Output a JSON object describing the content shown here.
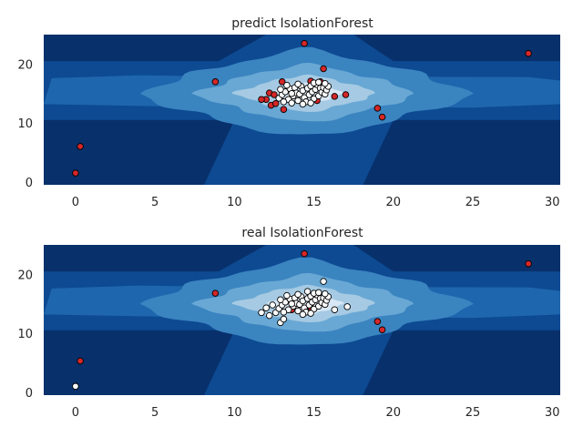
{
  "chart_data": [
    {
      "type": "scatter",
      "title": "predict IsolationForest",
      "xlabel": "",
      "ylabel": "",
      "xlim": [
        -2,
        30.5
      ],
      "ylim": [
        -0.5,
        25
      ],
      "xticks": [
        0,
        5,
        10,
        15,
        20,
        25,
        30
      ],
      "yticks": [
        0,
        10,
        20
      ],
      "grid": false,
      "background": "decision-function contour (Blues), dense region centered near (14.5, 15)",
      "colors": {
        "inlier": "#ffffff",
        "outlier": "#d62728"
      },
      "series": [
        {
          "color": "#d62728",
          "points": [
            [
              0.0,
              1.5
            ],
            [
              0.3,
              6.0
            ],
            [
              8.8,
              17.0
            ],
            [
              14.4,
              23.5
            ],
            [
              15.6,
              19.2
            ],
            [
              28.5,
              21.8
            ],
            [
              19.0,
              12.5
            ],
            [
              19.3,
              11.0
            ],
            [
              17.0,
              14.8
            ],
            [
              16.3,
              14.5
            ],
            [
              15.2,
              13.8
            ],
            [
              14.8,
              17.1
            ],
            [
              15.4,
              17.0
            ],
            [
              13.0,
              17.0
            ],
            [
              13.1,
              12.3
            ],
            [
              12.3,
              13.0
            ],
            [
              12.0,
              14.0
            ],
            [
              11.7,
              14.0
            ],
            [
              12.6,
              13.3
            ],
            [
              12.2,
              15.1
            ],
            [
              12.5,
              14.8
            ]
          ]
        },
        {
          "color": "#ffffff",
          "points": [
            [
              12.8,
              14.2
            ],
            [
              13.0,
              14.8
            ],
            [
              13.2,
              15.3
            ],
            [
              13.4,
              14.0
            ],
            [
              13.5,
              15.8
            ],
            [
              13.6,
              13.4
            ],
            [
              13.7,
              14.6
            ],
            [
              13.8,
              16.0
            ],
            [
              13.9,
              15.1
            ],
            [
              14.0,
              13.8
            ],
            [
              14.1,
              14.9
            ],
            [
              14.2,
              16.2
            ],
            [
              14.3,
              15.5
            ],
            [
              14.4,
              14.3
            ],
            [
              14.5,
              13.6
            ],
            [
              14.6,
              15.9
            ],
            [
              14.7,
              14.8
            ],
            [
              14.8,
              16.3
            ],
            [
              14.9,
              15.3
            ],
            [
              15.0,
              14.1
            ],
            [
              15.1,
              15.7
            ],
            [
              15.2,
              16.5
            ],
            [
              15.3,
              14.6
            ],
            [
              15.4,
              15.9
            ],
            [
              15.5,
              15.2
            ],
            [
              15.6,
              16.0
            ],
            [
              15.7,
              14.9
            ],
            [
              15.8,
              15.6
            ],
            [
              15.9,
              16.2
            ],
            [
              13.3,
              16.4
            ],
            [
              13.6,
              15.0
            ],
            [
              14.0,
              16.6
            ],
            [
              14.3,
              13.2
            ],
            [
              14.8,
              13.4
            ],
            [
              15.0,
              16.8
            ],
            [
              15.3,
              16.9
            ],
            [
              15.7,
              16.7
            ],
            [
              12.9,
              15.7
            ],
            [
              13.1,
              13.6
            ]
          ]
        }
      ]
    },
    {
      "type": "scatter",
      "title": "real IsolationForest",
      "xlabel": "",
      "ylabel": "",
      "xlim": [
        -2,
        30.5
      ],
      "ylim": [
        -0.5,
        25
      ],
      "xticks": [
        0,
        5,
        10,
        15,
        20,
        25,
        30
      ],
      "yticks": [
        0,
        10,
        20
      ],
      "grid": false,
      "background": "decision-function contour (Blues), dense region centered near (14.5, 15)",
      "colors": {
        "inlier": "#ffffff",
        "outlier": "#d62728"
      },
      "series": [
        {
          "color": "#d62728",
          "points": [
            [
              0.3,
              5.3
            ],
            [
              8.8,
              16.8
            ],
            [
              14.4,
              23.5
            ],
            [
              28.5,
              21.8
            ],
            [
              19.0,
              12.0
            ],
            [
              19.3,
              10.6
            ],
            [
              13.6,
              14.0
            ],
            [
              14.8,
              14.4
            ]
          ]
        },
        {
          "color": "#ffffff",
          "points": [
            [
              0.0,
              1.0
            ],
            [
              15.6,
              18.8
            ],
            [
              17.1,
              14.5
            ],
            [
              16.3,
              14.0
            ],
            [
              11.7,
              13.5
            ],
            [
              12.0,
              14.3
            ],
            [
              12.2,
              13.0
            ],
            [
              12.4,
              14.8
            ],
            [
              12.6,
              13.5
            ],
            [
              12.8,
              14.2
            ],
            [
              12.9,
              11.8
            ],
            [
              13.0,
              14.8
            ],
            [
              13.1,
              12.4
            ],
            [
              13.2,
              15.3
            ],
            [
              13.4,
              14.0
            ],
            [
              13.5,
              15.8
            ],
            [
              13.7,
              14.6
            ],
            [
              13.8,
              16.0
            ],
            [
              13.9,
              15.1
            ],
            [
              14.0,
              13.8
            ],
            [
              14.1,
              14.9
            ],
            [
              14.2,
              16.2
            ],
            [
              14.3,
              15.5
            ],
            [
              14.4,
              14.3
            ],
            [
              14.5,
              13.6
            ],
            [
              14.6,
              15.9
            ],
            [
              14.7,
              14.8
            ],
            [
              14.8,
              16.3
            ],
            [
              14.9,
              15.3
            ],
            [
              15.0,
              14.1
            ],
            [
              15.1,
              15.7
            ],
            [
              15.2,
              16.5
            ],
            [
              15.3,
              14.6
            ],
            [
              15.4,
              15.9
            ],
            [
              15.5,
              15.2
            ],
            [
              15.6,
              16.0
            ],
            [
              15.7,
              14.9
            ],
            [
              15.8,
              15.6
            ],
            [
              15.9,
              16.2
            ],
            [
              13.3,
              16.4
            ],
            [
              13.6,
              15.0
            ],
            [
              14.0,
              16.6
            ],
            [
              14.3,
              13.2
            ],
            [
              14.8,
              13.4
            ],
            [
              15.0,
              16.8
            ],
            [
              15.3,
              16.9
            ],
            [
              15.7,
              16.7
            ],
            [
              12.9,
              15.7
            ],
            [
              13.1,
              13.6
            ],
            [
              14.6,
              17.1
            ]
          ]
        }
      ]
    }
  ]
}
